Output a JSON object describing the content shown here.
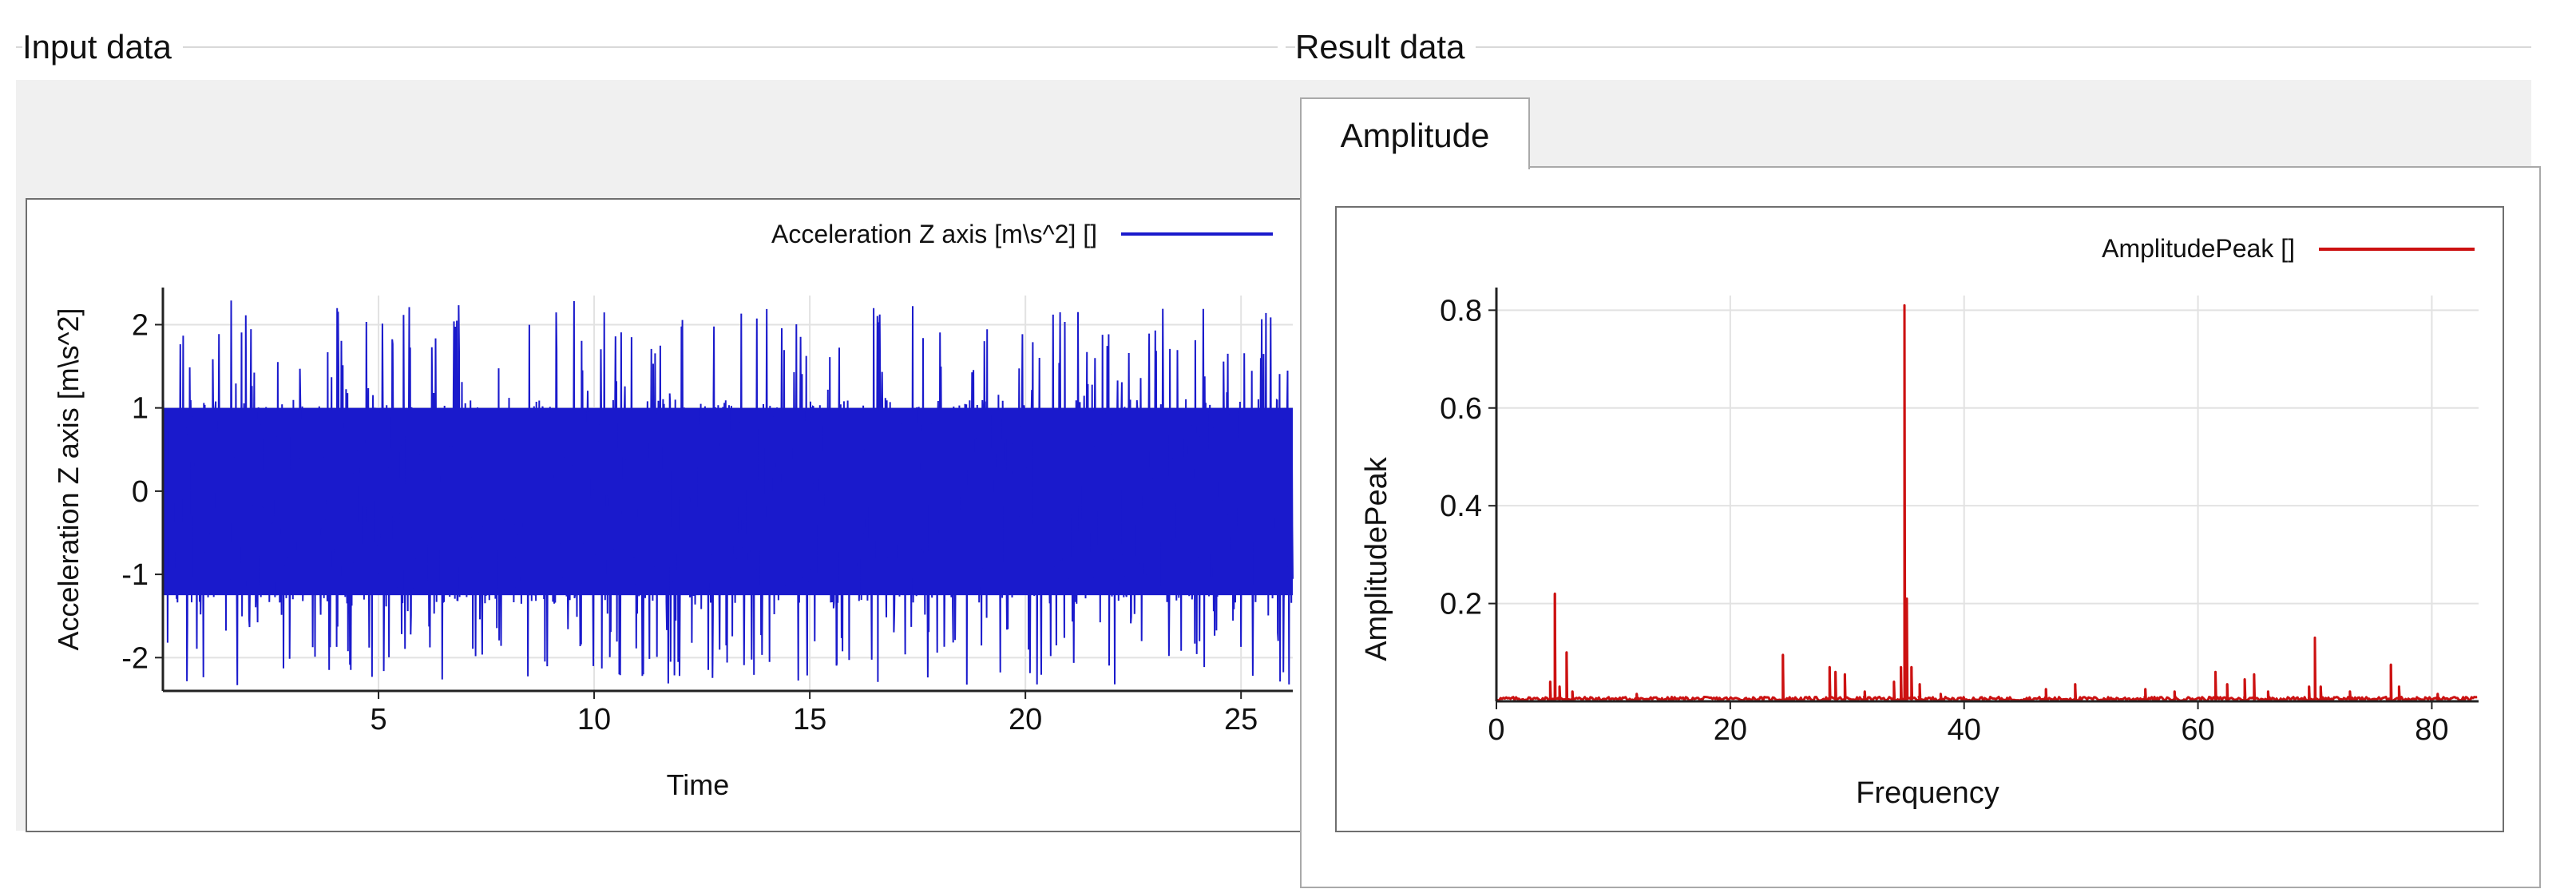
{
  "input_group": {
    "title": "Input data"
  },
  "result_group": {
    "title": "Result data",
    "tabs": [
      {
        "label": "Amplitude",
        "selected": true
      }
    ]
  },
  "colors": {
    "input_series": "#1a1acc",
    "result_series": "#cc1111",
    "grid": "#e2e2e2"
  },
  "chart_data": [
    {
      "type": "line",
      "title": "",
      "xlabel": "Time",
      "ylabel": "Acceleration Z axis [m\\s^2]",
      "xlim": [
        0,
        26.2
      ],
      "ylim": [
        -2.4,
        2.35
      ],
      "xticks": [
        5,
        10,
        15,
        20,
        25
      ],
      "yticks": [
        -2,
        -1,
        0,
        1,
        2
      ],
      "grid": true,
      "legend_position": "top-right",
      "series": [
        {
          "name": "Acceleration Z axis [m\\s^2] []",
          "color": "#1a1acc",
          "noise": {
            "envelope_upper": 1.1,
            "envelope_lower": -1.35,
            "max": 2.3,
            "min": -2.35
          }
        }
      ]
    },
    {
      "type": "line",
      "title": "",
      "xlabel": "Frequency",
      "ylabel": "AmplitudePeak",
      "xlim": [
        0,
        84
      ],
      "ylim": [
        0,
        0.83
      ],
      "xticks": [
        0,
        20,
        40,
        60,
        80
      ],
      "yticks": [
        0.2,
        0.4,
        0.6,
        0.8
      ],
      "grid": true,
      "legend_position": "top-right",
      "series": [
        {
          "name": "AmplitudePeak []",
          "color": "#cc1111",
          "peaks": [
            [
              4.6,
              0.04
            ],
            [
              5.0,
              0.22
            ],
            [
              5.4,
              0.03
            ],
            [
              6.0,
              0.1
            ],
            [
              6.5,
              0.02
            ],
            [
              12.0,
              0.015
            ],
            [
              24.5,
              0.095
            ],
            [
              28.5,
              0.07
            ],
            [
              29.0,
              0.06
            ],
            [
              29.8,
              0.055
            ],
            [
              31.5,
              0.02
            ],
            [
              34.0,
              0.04
            ],
            [
              34.6,
              0.07
            ],
            [
              34.9,
              0.81
            ],
            [
              35.1,
              0.21
            ],
            [
              35.5,
              0.07
            ],
            [
              36.2,
              0.035
            ],
            [
              38.0,
              0.015
            ],
            [
              47.0,
              0.025
            ],
            [
              49.5,
              0.035
            ],
            [
              55.5,
              0.025
            ],
            [
              58.0,
              0.02
            ],
            [
              61.5,
              0.06
            ],
            [
              62.5,
              0.035
            ],
            [
              64.0,
              0.045
            ],
            [
              64.8,
              0.055
            ],
            [
              66.0,
              0.02
            ],
            [
              69.5,
              0.03
            ],
            [
              70.0,
              0.13
            ],
            [
              70.5,
              0.03
            ],
            [
              73.0,
              0.02
            ],
            [
              76.5,
              0.075
            ],
            [
              77.2,
              0.03
            ],
            [
              80.5,
              0.015
            ]
          ],
          "baseline": 0.005
        }
      ]
    }
  ]
}
